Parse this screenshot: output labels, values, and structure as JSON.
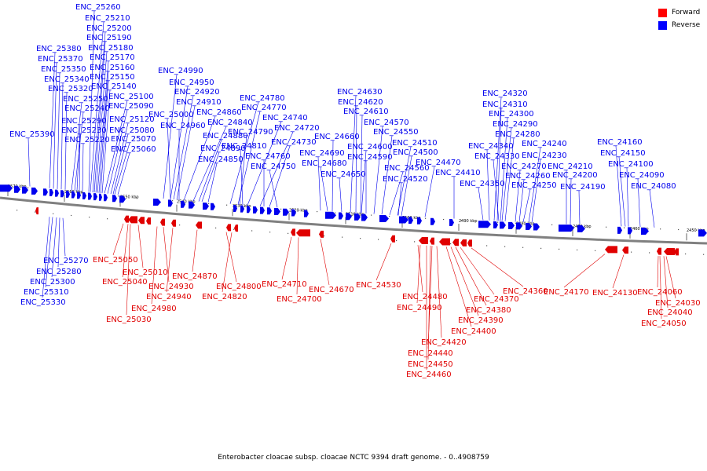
{
  "legend": [
    {
      "label": "Forward",
      "color": "#ff0000"
    },
    {
      "label": "Reverse",
      "color": "#0000ff"
    }
  ],
  "caption": "Enterobacter cloacae subsp. cloacae NCTC 9394 draft genome. - 0..4908759",
  "colors": {
    "forward": "#e00000",
    "reverse": "#0000ee",
    "backbone": "#808080",
    "tick": "#000000"
  },
  "scale_labels": [
    "2570 kbp",
    "2560 kbp",
    "2550 kbp",
    "2540 kbp",
    "2530 kbp",
    "2520 kbp",
    "2510 kbp",
    "2500 kbp",
    "2490 kbp",
    "2480 kbp",
    "2470 kbp",
    "2460 kbp",
    "2450 kbp"
  ],
  "reverse_genes": [
    "ENC_25390",
    "ENC_25380",
    "ENC_25370",
    "ENC_25350",
    "ENC_25340",
    "ENC_25320",
    "ENC_25250",
    "ENC_25240",
    "ENC_25290",
    "ENC_25230",
    "ENC_25220",
    "ENC_25260",
    "ENC_25210",
    "ENC_25200",
    "ENC_25190",
    "ENC_25180",
    "ENC_25170",
    "ENC_25160",
    "ENC_25150",
    "ENC_25140",
    "ENC_25100",
    "ENC_25090",
    "ENC_25120",
    "ENC_25080",
    "ENC_25070",
    "ENC_25060",
    "ENC_24990",
    "ENC_24950",
    "ENC_24920",
    "ENC_24910",
    "ENC_25000",
    "ENC_24960",
    "ENC_24860",
    "ENC_24840",
    "ENC_24880",
    "ENC_24890",
    "ENC_24850",
    "ENC_24780",
    "ENC_24770",
    "ENC_24740",
    "ENC_24720",
    "ENC_24790",
    "ENC_24810",
    "ENC_24760",
    "ENC_24750",
    "ENC_24730",
    "ENC_24630",
    "ENC_24620",
    "ENC_24610",
    "ENC_24660",
    "ENC_24570",
    "ENC_24550",
    "ENC_24600",
    "ENC_24590",
    "ENC_24690",
    "ENC_24680",
    "ENC_24650",
    "ENC_24560",
    "ENC_24510",
    "ENC_24500",
    "ENC_24470",
    "ENC_24520",
    "ENC_24410",
    "ENC_24320",
    "ENC_24310",
    "ENC_24300",
    "ENC_24290",
    "ENC_24280",
    "ENC_24340",
    "ENC_24330",
    "ENC_24350",
    "ENC_24240",
    "ENC_24230",
    "ENC_24270",
    "ENC_24260",
    "ENC_24250",
    "ENC_24210",
    "ENC_24200",
    "ENC_24190",
    "ENC_24160",
    "ENC_24150",
    "ENC_24100",
    "ENC_24090",
    "ENC_24080",
    "ENC_25270",
    "ENC_25280",
    "ENC_25300",
    "ENC_25310",
    "ENC_25330"
  ],
  "forward_genes": [
    "ENC_25050",
    "ENC_25010",
    "ENC_25040",
    "ENC_24930",
    "ENC_24940",
    "ENC_24980",
    "ENC_25030",
    "ENC_24870",
    "ENC_24800",
    "ENC_24820",
    "ENC_24710",
    "ENC_24700",
    "ENC_24670",
    "ENC_24530",
    "ENC_24480",
    "ENC_24490",
    "ENC_24370",
    "ENC_24380",
    "ENC_24390",
    "ENC_24400",
    "ENC_24420",
    "ENC_24440",
    "ENC_24450",
    "ENC_24460",
    "ENC_24360",
    "ENC_24170",
    "ENC_24130",
    "ENC_24060",
    "ENC_24030",
    "ENC_24040",
    "ENC_24050"
  ]
}
